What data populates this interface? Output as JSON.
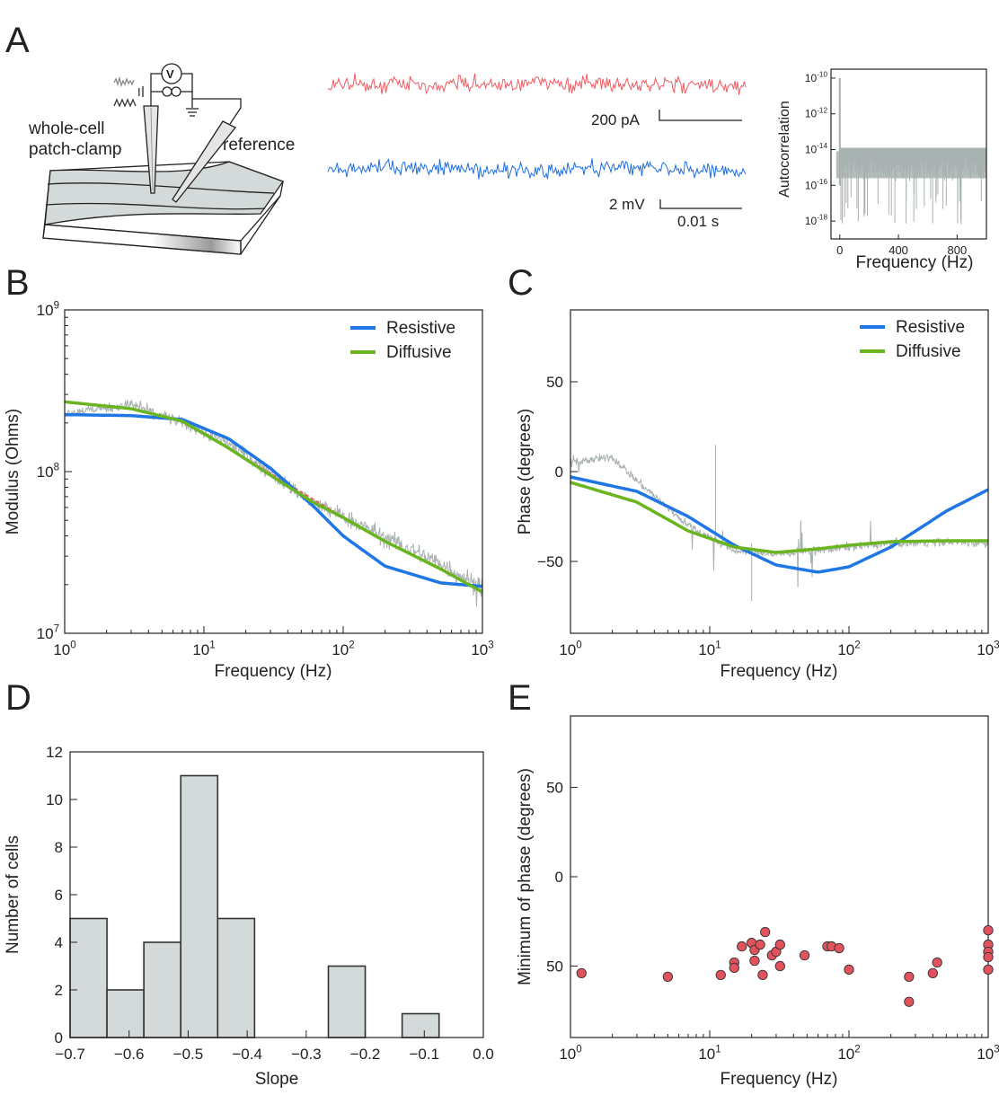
{
  "panel_letters": {
    "a": "A",
    "b": "B",
    "c": "C",
    "d": "D",
    "e": "E"
  },
  "schematic": {
    "label_wholecell_1": "whole-cell",
    "label_wholecell_2": "patch-clamp",
    "label_reference": "reference",
    "voltmeter_symbol": "V",
    "current_symbol": "I"
  },
  "traces": {
    "current_scale": "200 pA",
    "voltage_scale": "2 mV",
    "time_scale": "0.01 s",
    "current_color": "#f05a60",
    "voltage_color": "#1f6fe0"
  },
  "colors": {
    "resistive": "#1f77e6",
    "diffusive": "#6ab51f",
    "data_gray": "#a8b2b0",
    "red_fit": "#e8606a",
    "hist_fill": "#d3dad9",
    "scatter": "#e2525c"
  },
  "chart_data": [
    {
      "id": "A-inset",
      "type": "line",
      "title": "",
      "xlabel": "Frequency (Hz)",
      "ylabel": "Autocorrelation",
      "xlim": [
        -60,
        1000
      ],
      "ylim_log10": [
        -19,
        -9.5
      ],
      "xticks": [
        "0",
        "400",
        "800"
      ],
      "yticks": [
        "10-10",
        "10-12",
        "10-14",
        "10-16",
        "10-18"
      ],
      "series": [
        {
          "name": "autocorrelation",
          "peak_at_0": 1e-10,
          "floor_range": [
            1e-17,
            3e-15
          ]
        }
      ]
    },
    {
      "id": "B",
      "type": "line",
      "xscale": "log",
      "yscale": "log",
      "xlabel": "Frequency (Hz)",
      "ylabel": "Modulus (Ohms)",
      "xlim": [
        1,
        1000
      ],
      "ylim": [
        10000000.0,
        1000000000.0
      ],
      "xticks": [
        "10",
        "10",
        "10",
        "10"
      ],
      "xtick_exp": [
        "0",
        "1",
        "2",
        "3"
      ],
      "yticks": [
        "10",
        "10",
        "10"
      ],
      "ytick_exp": [
        "7",
        "8",
        "9"
      ],
      "legend": [
        "Resistive",
        "Diffusive"
      ],
      "legend_position": "top-right",
      "series": [
        {
          "name": "Resistive",
          "x": [
            1,
            3,
            7,
            15,
            30,
            60,
            100,
            200,
            500,
            1000
          ],
          "y": [
            225000000.0,
            222000000.0,
            210000000.0,
            160000000.0,
            105000000.0,
            62000000.0,
            40000000.0,
            26000000.0,
            20500000.0,
            19500000.0
          ]
        },
        {
          "name": "Diffusive",
          "x": [
            1,
            3,
            7,
            15,
            30,
            60,
            100,
            200,
            500,
            1000
          ],
          "y": [
            270000000.0,
            245000000.0,
            205000000.0,
            140000000.0,
            95000000.0,
            65000000.0,
            52000000.0,
            37000000.0,
            25000000.0,
            18000000.0
          ]
        },
        {
          "name": "Data",
          "x": [
            1,
            3,
            7,
            15,
            30,
            60,
            100,
            200,
            500,
            1000
          ],
          "y": [
            230000000.0,
            260000000.0,
            200000000.0,
            150000000.0,
            98000000.0,
            64000000.0,
            53000000.0,
            39000000.0,
            27000000.0,
            19000000.0
          ]
        }
      ]
    },
    {
      "id": "C",
      "type": "line",
      "xscale": "log",
      "xlabel": "Frequency (Hz)",
      "ylabel": "Phase (degrees)",
      "xlim": [
        1,
        1000
      ],
      "ylim": [
        -90,
        90
      ],
      "xticks": [
        "10",
        "10",
        "10",
        "10"
      ],
      "xtick_exp": [
        "0",
        "1",
        "2",
        "3"
      ],
      "yticks": [
        "50",
        "0",
        "−50"
      ],
      "legend": [
        "Resistive",
        "Diffusive"
      ],
      "legend_position": "top-right",
      "series": [
        {
          "name": "Resistive",
          "x": [
            1,
            3,
            7,
            15,
            30,
            60,
            100,
            200,
            500,
            1000
          ],
          "y": [
            -3,
            -11,
            -25,
            -41,
            -52,
            -56,
            -53,
            -42,
            -22,
            -10
          ]
        },
        {
          "name": "Diffusive",
          "x": [
            1,
            3,
            7,
            15,
            30,
            60,
            100,
            200,
            500,
            1000
          ],
          "y": [
            -6,
            -17,
            -33,
            -42,
            -45,
            -43,
            -41,
            -39,
            -38.5,
            -38.5
          ]
        },
        {
          "name": "Data",
          "x": [
            1,
            2,
            3,
            7,
            15,
            30,
            60,
            100,
            200,
            500,
            1000
          ],
          "y": [
            5,
            8,
            -5,
            -30,
            -44,
            -46,
            -44,
            -42,
            -40,
            -39,
            -40
          ]
        }
      ]
    },
    {
      "id": "D",
      "type": "bar",
      "xlabel": "Slope",
      "ylabel": "Number of cells",
      "xlim": [
        -0.7,
        0.0
      ],
      "ylim": [
        0,
        12
      ],
      "xticks": [
        "−0.7",
        "−0.6",
        "−0.5",
        "−0.4",
        "−0.3",
        "−0.2",
        "−0.1",
        "0.0"
      ],
      "yticks": [
        "0",
        "2",
        "4",
        "6",
        "8",
        "10",
        "12"
      ],
      "bin_edges": [
        -0.7,
        -0.6375,
        -0.575,
        -0.5125,
        -0.45,
        -0.3875,
        -0.325,
        -0.2625,
        -0.2,
        -0.1375,
        -0.075
      ],
      "values": [
        5,
        2,
        4,
        11,
        5,
        0,
        0,
        3,
        0,
        1
      ]
    },
    {
      "id": "E",
      "type": "scatter",
      "xscale": "log",
      "xlabel": "Frequency (Hz)",
      "ylabel": "Minimum of phase (degrees)",
      "xlim": [
        1,
        1000
      ],
      "ylim": [
        -90,
        90
      ],
      "xticks": [
        "10",
        "10",
        "10",
        "10"
      ],
      "xtick_exp": [
        "0",
        "1",
        "2",
        "3"
      ],
      "yticks": [
        "50",
        "0",
        "50"
      ],
      "x": [
        1.2,
        5,
        12,
        15,
        15,
        17,
        20,
        21,
        21,
        23,
        24,
        25,
        28,
        30,
        32,
        32,
        48,
        70,
        75,
        85,
        100,
        270,
        270,
        400,
        430,
        1000,
        1000,
        1000,
        1000,
        1000
      ],
      "y": [
        -54,
        -56,
        -55,
        -48,
        -51,
        -39,
        -37,
        -41,
        -47,
        -38,
        -55,
        -31,
        -44,
        -42,
        -38,
        -50,
        -44,
        -39,
        -39,
        -40,
        -52,
        -56,
        -70,
        -54,
        -48,
        -30,
        -38,
        -42,
        -45,
        -52
      ]
    }
  ]
}
